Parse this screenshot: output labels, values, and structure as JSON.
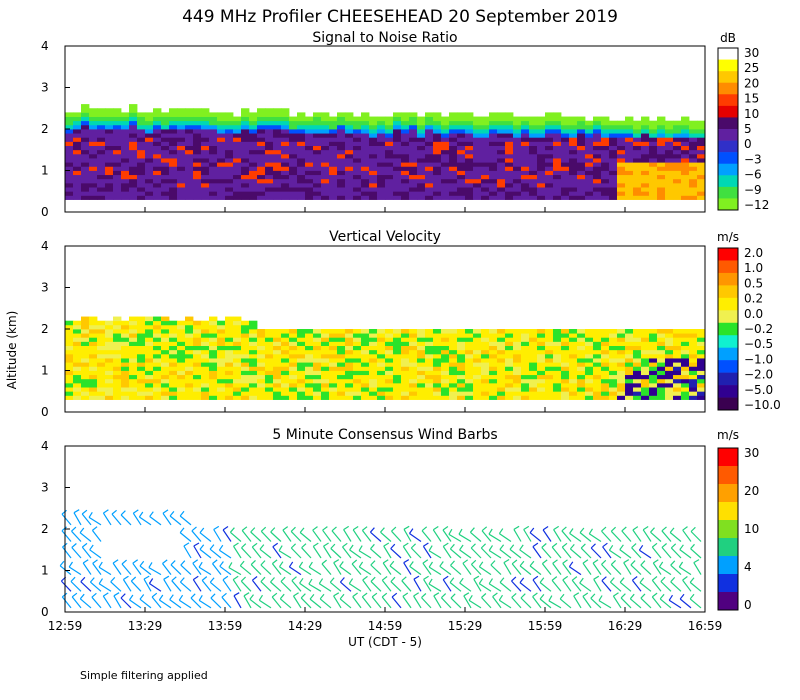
{
  "title": "449 MHz Profiler CHEESEHEAD 20 September 2019",
  "ylabel": "Altitude (km)",
  "xlabel": "UT  (CDT - 5)",
  "xticks": [
    "12:59",
    "13:29",
    "13:59",
    "14:29",
    "14:59",
    "15:29",
    "15:59",
    "16:29",
    "16:59"
  ],
  "yticks": [
    "0",
    "1",
    "2",
    "3",
    "4"
  ],
  "footnote": "Simple filtering applied",
  "chart_data": [
    {
      "type": "heatmap",
      "title": "Signal to Noise Ratio",
      "ylim": [
        0,
        4
      ],
      "legend_unit": "dB",
      "legend_labels": [
        "30",
        "25",
        "20",
        "15",
        "10",
        "5",
        "0",
        "−3",
        "−6",
        "−9",
        "−12"
      ],
      "colors": [
        "#ffffff",
        "#ffff00",
        "#ffc800",
        "#ff8c00",
        "#ff3c00",
        "#e60000",
        "#4a0a6a",
        "#6020a0",
        "#3030c8",
        "#0050ff",
        "#00a0ff",
        "#00d8b4",
        "#40e040",
        "#80f020"
      ]
    },
    {
      "type": "heatmap",
      "title": "Vertical Velocity",
      "ylim": [
        0,
        4
      ],
      "legend_unit": "m/s",
      "legend_labels": [
        "2.0",
        "1.0",
        "0.5",
        "0.2",
        "0.0",
        "−0.2",
        "−0.5",
        "−1.0",
        "−2.0",
        "−5.0",
        "−10.0"
      ],
      "colors": [
        "#ff0000",
        "#ff5a00",
        "#ff9600",
        "#ffc800",
        "#ffee00",
        "#f0f050",
        "#2ae32a",
        "#10f0d0",
        "#00a0ff",
        "#0050ff",
        "#2020b0",
        "#300090",
        "#3a0050"
      ]
    },
    {
      "type": "scatter",
      "title": "5 Minute Consensus Wind Barbs",
      "ylim": [
        0,
        4
      ],
      "legend_unit": "m/s",
      "legend_labels": [
        "30",
        "20",
        "10",
        "4",
        "0"
      ],
      "colors": [
        "#ff0000",
        "#ff5a00",
        "#ffa000",
        "#ffe000",
        "#80e020",
        "#20d080",
        "#00a0ff",
        "#1030e0",
        "#500080"
      ]
    }
  ]
}
